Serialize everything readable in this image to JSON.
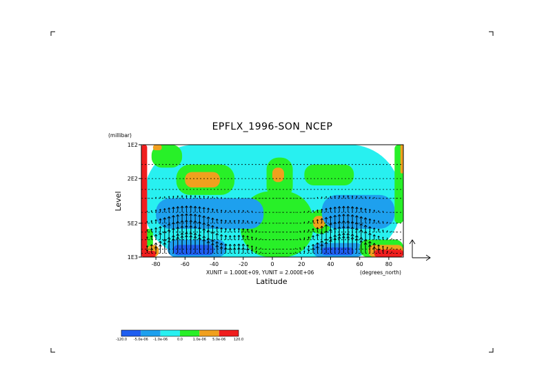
{
  "chart_data": {
    "type": "heatmap",
    "title": "EPFLX_1996-SON_NCEP",
    "xlabel": "Latitude",
    "ylabel": "Level",
    "y_units": "(millibar)",
    "x_units": "(degrees_north)",
    "vector_units": "XUNIT = 1.000E+09, YUNIT = 2.000E+06",
    "xlim": [
      -90,
      90
    ],
    "ylim": [
      1000,
      100
    ],
    "y_scale": "log",
    "x_ticks": [
      {
        "value": -80,
        "label": "-80"
      },
      {
        "value": -60,
        "label": "-60"
      },
      {
        "value": -40,
        "label": "-40"
      },
      {
        "value": -20,
        "label": "-20"
      },
      {
        "value": 0,
        "label": "0"
      },
      {
        "value": 20,
        "label": "20"
      },
      {
        "value": 40,
        "label": "40"
      },
      {
        "value": 60,
        "label": "60"
      },
      {
        "value": 80,
        "label": "80"
      }
    ],
    "y_ticks": [
      {
        "value": 100,
        "label": "1E2"
      },
      {
        "value": 200,
        "label": "2E2"
      },
      {
        "value": 500,
        "label": "5E2"
      },
      {
        "value": 1000,
        "label": "1E3"
      }
    ],
    "pressure_gridlines": [
      100,
      150,
      200,
      250,
      300,
      400,
      500,
      600,
      700,
      850,
      925,
      1000
    ],
    "colorbar": {
      "labels": [
        "-120.0",
        "-5.0e-06",
        "-1.0e-06",
        "0.0",
        "1.0e-06",
        "5.0e-06",
        "120.0"
      ],
      "colors": [
        "#1f5ef0",
        "#1ea0ee",
        "#28f0f0",
        "#28f028",
        "#f0a01e",
        "#f01e1e"
      ]
    },
    "field_levels": [
      -3,
      -2,
      -1,
      0,
      1,
      2
    ],
    "field_regions": [
      {
        "level": -1,
        "lon": [
          -88,
          88
        ],
        "p": [
          100,
          1000
        ]
      },
      {
        "level": 0,
        "lon": [
          -83,
          -62
        ],
        "p": [
          100,
          160
        ]
      },
      {
        "level": 1,
        "lon": [
          -82,
          -76
        ],
        "p": [
          100,
          112
        ]
      },
      {
        "level": 0,
        "lon": [
          -66,
          -26
        ],
        "p": [
          150,
          280
        ]
      },
      {
        "level": 1,
        "lon": [
          -60,
          -36
        ],
        "p": [
          175,
          240
        ]
      },
      {
        "level": 0,
        "lon": [
          -22,
          28
        ],
        "p": [
          260,
          1000
        ]
      },
      {
        "level": 0,
        "lon": [
          -4,
          14
        ],
        "p": [
          130,
          300
        ]
      },
      {
        "level": 1,
        "lon": [
          0,
          8
        ],
        "p": [
          160,
          215
        ]
      },
      {
        "level": 0,
        "lon": [
          22,
          56
        ],
        "p": [
          150,
          230
        ]
      },
      {
        "level": 0,
        "lon": [
          26,
          40
        ],
        "p": [
          380,
          620
        ]
      },
      {
        "level": 1,
        "lon": [
          28,
          36
        ],
        "p": [
          430,
          560
        ]
      },
      {
        "level": -2,
        "lon": [
          -80,
          -6
        ],
        "p": [
          300,
          560
        ]
      },
      {
        "level": -2,
        "lon": [
          34,
          84
        ],
        "p": [
          280,
          560
        ]
      },
      {
        "level": -2,
        "lon": [
          -72,
          -32
        ],
        "p": [
          700,
          1000
        ]
      },
      {
        "level": -3,
        "lon": [
          -68,
          -40
        ],
        "p": [
          780,
          960
        ]
      },
      {
        "level": -2,
        "lon": [
          28,
          62
        ],
        "p": [
          750,
          1000
        ]
      },
      {
        "level": -3,
        "lon": [
          34,
          56
        ],
        "p": [
          820,
          960
        ]
      },
      {
        "level": 0,
        "lon": [
          -90,
          -82
        ],
        "p": [
          560,
          1000
        ]
      },
      {
        "level": 1,
        "lon": [
          -86,
          -78
        ],
        "p": [
          780,
          1000
        ]
      },
      {
        "level": 2,
        "lon": [
          -88,
          -80
        ],
        "p": [
          880,
          1000
        ]
      },
      {
        "level": 0,
        "lon": [
          60,
          90
        ],
        "p": [
          700,
          1000
        ]
      },
      {
        "level": 1,
        "lon": [
          66,
          90
        ],
        "p": [
          780,
          1000
        ]
      },
      {
        "level": 2,
        "lon": [
          70,
          90
        ],
        "p": [
          860,
          1000
        ]
      },
      {
        "level": 2,
        "lon": [
          -90,
          -86
        ],
        "p": [
          100,
          1000
        ]
      },
      {
        "level": 0,
        "lon": [
          84,
          90
        ],
        "p": [
          100,
          500
        ]
      },
      {
        "level": 1,
        "lon": [
          88,
          90
        ],
        "p": [
          100,
          180
        ]
      }
    ],
    "vector_field": {
      "lat_range": [
        -86,
        86
      ],
      "lat_step": 3,
      "pressure_levels": [
        300,
        400,
        500,
        600,
        700,
        850,
        925
      ],
      "max_upward_shaft_px": 26,
      "peaks": [
        {
          "lat": -58,
          "width": 22,
          "strength": 1.0
        },
        {
          "lat": 50,
          "width": 20,
          "strength": 0.95
        },
        {
          "lat": -20,
          "width": 10,
          "strength": 0.25
        }
      ]
    }
  }
}
